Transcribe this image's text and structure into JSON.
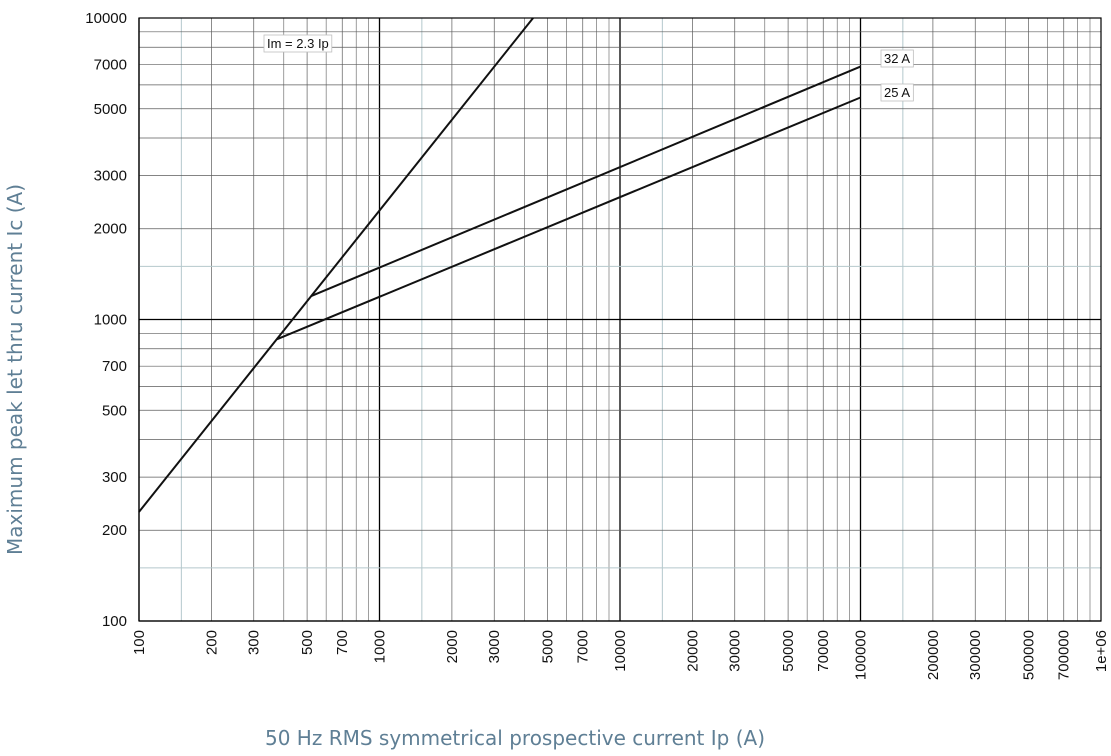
{
  "chart_data": {
    "type": "line",
    "title": "",
    "xlabel": "50 Hz RMS symmetrical prospective current Ip (A)",
    "ylabel": "Maximum peak let thru current Ic (A)",
    "x_scale": "log",
    "y_scale": "log",
    "xlim": [
      100,
      1000000
    ],
    "ylim": [
      100,
      10000
    ],
    "grid": true,
    "x_ticks": [
      {
        "value": 100,
        "label": "100"
      },
      {
        "value": 200,
        "label": "200"
      },
      {
        "value": 300,
        "label": "300"
      },
      {
        "value": 500,
        "label": "500"
      },
      {
        "value": 700,
        "label": "700"
      },
      {
        "value": 1000,
        "label": "1000"
      },
      {
        "value": 2000,
        "label": "2000"
      },
      {
        "value": 3000,
        "label": "3000"
      },
      {
        "value": 5000,
        "label": "5000"
      },
      {
        "value": 7000,
        "label": "7000"
      },
      {
        "value": 10000,
        "label": "10000"
      },
      {
        "value": 20000,
        "label": "20000"
      },
      {
        "value": 30000,
        "label": "30000"
      },
      {
        "value": 50000,
        "label": "50000"
      },
      {
        "value": 70000,
        "label": "70000"
      },
      {
        "value": 100000,
        "label": "100000"
      },
      {
        "value": 200000,
        "label": "200000"
      },
      {
        "value": 300000,
        "label": "300000"
      },
      {
        "value": 500000,
        "label": "500000"
      },
      {
        "value": 700000,
        "label": "700000"
      },
      {
        "value": 1000000,
        "label": "1e+06"
      }
    ],
    "y_ticks": [
      {
        "value": 100,
        "label": "100"
      },
      {
        "value": 200,
        "label": "200"
      },
      {
        "value": 300,
        "label": "300"
      },
      {
        "value": 500,
        "label": "500"
      },
      {
        "value": 700,
        "label": "700"
      },
      {
        "value": 1000,
        "label": "1000"
      },
      {
        "value": 2000,
        "label": "2000"
      },
      {
        "value": 3000,
        "label": "3000"
      },
      {
        "value": 5000,
        "label": "5000"
      },
      {
        "value": 7000,
        "label": "7000"
      },
      {
        "value": 10000,
        "label": "10000"
      }
    ],
    "series": [
      {
        "label": "Im = 2.3 Ip",
        "points": [
          [
            100,
            230
          ],
          [
            4350,
            10000
          ]
        ]
      },
      {
        "label": "32 A",
        "points": [
          [
            520,
            1196
          ],
          [
            100000,
            6900
          ]
        ]
      },
      {
        "label": "25 A",
        "points": [
          [
            375,
            860
          ],
          [
            100000,
            5450
          ]
        ]
      }
    ]
  },
  "colors": {
    "major_grid": "#000000",
    "minor_grid": "#5c5c5c",
    "faint_grid": "#b4c8cc",
    "series_line": "#111111",
    "axis_title": "#5f7f95"
  }
}
